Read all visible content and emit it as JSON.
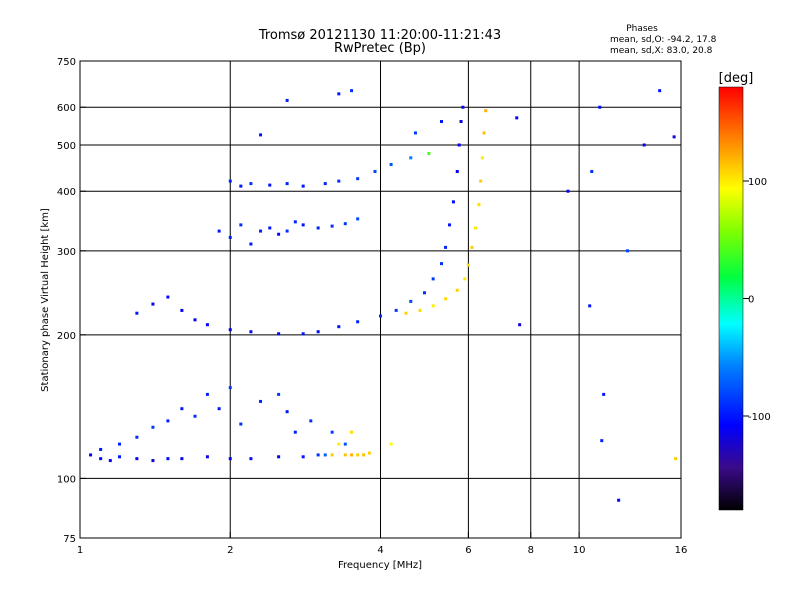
{
  "chart_data": {
    "type": "scatter",
    "title": "Tromsø 20121130 11:20:00-11:21:43",
    "subtitle": "RwPretec (Bp)",
    "xlabel": "Frequency [MHz]",
    "ylabel": "Stationary phase Virtual Height [km]",
    "x_scale": "log",
    "y_scale": "log",
    "xlim": [
      1,
      16
    ],
    "ylim": [
      75,
      750
    ],
    "x_ticks": [
      {
        "value": 1,
        "label": "1"
      },
      {
        "value": 2,
        "label": "2"
      },
      {
        "value": 4,
        "label": "4"
      },
      {
        "value": 6,
        "label": "6"
      },
      {
        "value": 8,
        "label": "8"
      },
      {
        "value": 10,
        "label": "10"
      },
      {
        "value": 16,
        "label": "16"
      }
    ],
    "y_ticks": [
      {
        "value": 75,
        "label": "75"
      },
      {
        "value": 100,
        "label": "100"
      },
      {
        "value": 200,
        "label": "200"
      },
      {
        "value": 300,
        "label": "300"
      },
      {
        "value": 400,
        "label": "400"
      },
      {
        "value": 500,
        "label": "500"
      },
      {
        "value": 600,
        "label": "600"
      },
      {
        "value": 750,
        "label": "750"
      }
    ],
    "grid": true,
    "grid_x": [
      2,
      4,
      6,
      8,
      10
    ],
    "grid_y": [
      100,
      200,
      300,
      400,
      500,
      600
    ],
    "stats_block": {
      "heading": "Phases",
      "line_o": "mean, sd,O: -94.2, 17.8",
      "line_x": "mean, sd,X: 83.0, 20.8"
    },
    "colorbar": {
      "label": "[deg]",
      "range": [
        -180,
        180
      ],
      "ticks": [
        {
          "value": 100,
          "label": "100"
        },
        {
          "value": 0,
          "label": "0"
        },
        {
          "value": -100,
          "label": "-100"
        }
      ]
    },
    "series": [
      {
        "points": [
          [
            1.05,
            112,
            -110
          ],
          [
            1.1,
            110,
            -105
          ],
          [
            1.15,
            109,
            -115
          ],
          [
            1.2,
            111,
            -100
          ],
          [
            1.3,
            110,
            -110
          ],
          [
            1.4,
            109,
            -115
          ],
          [
            1.5,
            110,
            -105
          ],
          [
            1.6,
            110,
            -110
          ],
          [
            1.8,
            111,
            -115
          ],
          [
            2.0,
            110,
            -110
          ],
          [
            2.2,
            110,
            -105
          ],
          [
            2.5,
            111,
            -110
          ],
          [
            2.8,
            111,
            -100
          ],
          [
            3.0,
            112,
            -90
          ],
          [
            3.1,
            112,
            -70
          ]
        ]
      },
      {
        "points": [
          [
            1.1,
            115,
            -100
          ],
          [
            1.2,
            118,
            -95
          ],
          [
            1.3,
            122,
            -90
          ],
          [
            1.4,
            128,
            -85
          ],
          [
            1.5,
            132,
            -95
          ],
          [
            1.6,
            140,
            -100
          ],
          [
            1.7,
            135,
            -90
          ],
          [
            1.8,
            150,
            -95
          ],
          [
            1.9,
            140,
            -100
          ],
          [
            2.0,
            155,
            -85
          ],
          [
            2.1,
            130,
            -90
          ],
          [
            2.3,
            145,
            -95
          ],
          [
            2.5,
            150,
            -85
          ],
          [
            2.6,
            138,
            -100
          ],
          [
            2.7,
            125,
            -95
          ],
          [
            2.9,
            132,
            -90
          ],
          [
            3.2,
            125,
            -85
          ],
          [
            3.4,
            118,
            -75
          ]
        ]
      },
      {
        "points": [
          [
            3.2,
            112,
            110
          ],
          [
            3.4,
            112,
            115
          ],
          [
            3.5,
            112,
            120
          ],
          [
            3.6,
            112,
            110
          ],
          [
            3.7,
            112,
            115
          ],
          [
            3.8,
            113,
            110
          ],
          [
            3.3,
            118,
            100
          ],
          [
            3.5,
            125,
            105
          ],
          [
            4.2,
            118,
            95
          ]
        ]
      },
      {
        "points": [
          [
            1.3,
            222,
            -100
          ],
          [
            1.4,
            232,
            -110
          ],
          [
            1.5,
            240,
            -105
          ],
          [
            1.6,
            225,
            -110
          ],
          [
            1.7,
            215,
            -115
          ],
          [
            1.8,
            210,
            -110
          ],
          [
            2.0,
            205,
            -110
          ],
          [
            2.2,
            203,
            -105
          ],
          [
            2.5,
            201,
            -110
          ],
          [
            2.8,
            201,
            -100
          ],
          [
            3.0,
            203,
            -105
          ],
          [
            3.3,
            208,
            -100
          ],
          [
            3.6,
            213,
            -95
          ],
          [
            4.0,
            219,
            -90
          ],
          [
            4.3,
            225,
            -85
          ],
          [
            4.6,
            235,
            -80
          ],
          [
            4.9,
            245,
            -90
          ],
          [
            5.1,
            262,
            -85
          ],
          [
            5.3,
            282,
            -90
          ],
          [
            5.4,
            305,
            -95
          ],
          [
            5.5,
            340,
            -100
          ],
          [
            5.6,
            380,
            -105
          ],
          [
            5.7,
            440,
            -110
          ],
          [
            5.75,
            500,
            -110
          ],
          [
            5.8,
            560,
            -115
          ],
          [
            5.85,
            600,
            -110
          ]
        ]
      },
      {
        "points": [
          [
            4.5,
            222,
            110
          ],
          [
            4.8,
            225,
            105
          ],
          [
            5.1,
            230,
            100
          ],
          [
            5.4,
            238,
            105
          ],
          [
            5.7,
            248,
            110
          ],
          [
            5.9,
            262,
            100
          ],
          [
            6.0,
            280,
            105
          ],
          [
            6.1,
            305,
            110
          ],
          [
            6.2,
            335,
            100
          ],
          [
            6.3,
            375,
            105
          ],
          [
            6.35,
            420,
            110
          ],
          [
            6.4,
            470,
            100
          ],
          [
            6.45,
            530,
            115
          ],
          [
            6.5,
            590,
            120
          ]
        ]
      },
      {
        "points": [
          [
            1.9,
            330,
            -100
          ],
          [
            2.0,
            320,
            -95
          ],
          [
            2.1,
            340,
            -90
          ],
          [
            2.2,
            310,
            -100
          ],
          [
            2.3,
            330,
            -95
          ],
          [
            2.4,
            335,
            -100
          ],
          [
            2.5,
            325,
            -105
          ],
          [
            2.6,
            330,
            -90
          ],
          [
            2.7,
            345,
            -95
          ],
          [
            2.8,
            340,
            -100
          ],
          [
            3.0,
            335,
            -95
          ],
          [
            3.2,
            338,
            -90
          ],
          [
            3.4,
            342,
            -85
          ],
          [
            3.6,
            350,
            -80
          ]
        ]
      },
      {
        "points": [
          [
            2.0,
            420,
            -95
          ],
          [
            2.1,
            410,
            -100
          ],
          [
            2.2,
            415,
            -90
          ],
          [
            2.4,
            412,
            -100
          ],
          [
            2.6,
            415,
            -95
          ],
          [
            2.8,
            410,
            -100
          ],
          [
            3.1,
            415,
            -95
          ],
          [
            3.3,
            420,
            -90
          ],
          [
            3.6,
            425,
            -85
          ],
          [
            3.9,
            440,
            -80
          ],
          [
            4.2,
            455,
            -75
          ],
          [
            4.6,
            470,
            -60
          ],
          [
            5.0,
            480,
            40
          ]
        ]
      },
      {
        "points": [
          [
            2.3,
            525,
            -100
          ],
          [
            2.6,
            620,
            -95
          ],
          [
            3.3,
            640,
            -100
          ],
          [
            3.5,
            650,
            -90
          ],
          [
            4.7,
            530,
            -85
          ],
          [
            5.3,
            560,
            -100
          ],
          [
            7.5,
            570,
            -110
          ],
          [
            10.5,
            230,
            -100
          ],
          [
            10.6,
            440,
            -90
          ],
          [
            11.0,
            600,
            -105
          ],
          [
            11.1,
            120,
            -95
          ],
          [
            12.0,
            90,
            -110
          ],
          [
            12.5,
            300,
            -80
          ],
          [
            13.5,
            500,
            -110
          ],
          [
            14.5,
            650,
            -100
          ],
          [
            15.5,
            520,
            -120
          ],
          [
            15.6,
            110,
            110
          ],
          [
            7.6,
            210,
            -120
          ],
          [
            9.5,
            400,
            -110
          ],
          [
            11.2,
            150,
            -100
          ]
        ]
      }
    ]
  }
}
